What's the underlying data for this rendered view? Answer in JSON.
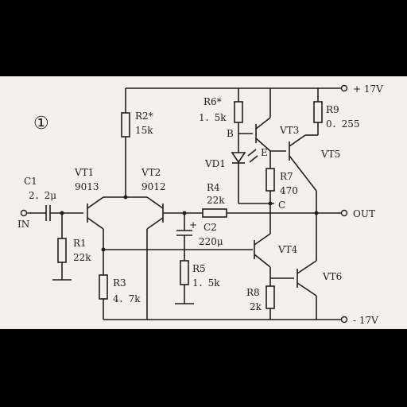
{
  "figure_number": "①",
  "rails": {
    "positive": "+ 17V",
    "negative": "- 17V"
  },
  "io": {
    "input": "IN",
    "output": "OUT"
  },
  "transistors": {
    "vt1": {
      "name": "VT1",
      "part": "9013"
    },
    "vt2": {
      "name": "VT2",
      "part": "9012"
    },
    "vt3": {
      "name": "VT3"
    },
    "vt4": {
      "name": "VT4"
    },
    "vt5": {
      "name": "VT5"
    },
    "vt6": {
      "name": "VT6"
    }
  },
  "diode": {
    "name": "VD1"
  },
  "capacitors": {
    "c1": {
      "name": "C1",
      "value": "2．2μ"
    },
    "c2": {
      "name": "C2",
      "value": "220μ"
    }
  },
  "resistors": {
    "r1": {
      "name": "R1",
      "value": "22k"
    },
    "r2": {
      "name": "R2*",
      "value": "15k"
    },
    "r3": {
      "name": "R3",
      "value": "4．7k"
    },
    "r4": {
      "name": "R4",
      "value": "22k"
    },
    "r5": {
      "name": "R5",
      "value": "1．5k"
    },
    "r6": {
      "name": "R6*",
      "value": "1．5k"
    },
    "r7": {
      "name": "R7",
      "value": "470"
    },
    "r8": {
      "name": "R8",
      "value": "2k"
    },
    "r9": {
      "name": "R9",
      "value": "0．255"
    }
  },
  "nodes": {
    "b": "B",
    "e": "E",
    "c": "C"
  }
}
